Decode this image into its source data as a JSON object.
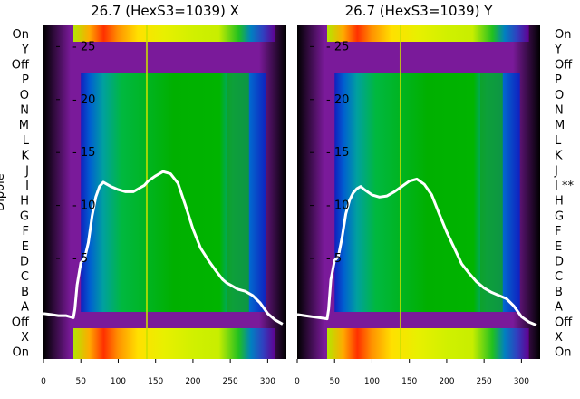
{
  "chart_data": [
    {
      "type": "heatmap",
      "title": "26.7 (HexS3=1039) X",
      "ylabel": "Dipole",
      "row_labels": [
        "On",
        "Y",
        "Off",
        "P",
        "O",
        "N",
        "M",
        "L",
        "K",
        "J",
        "I",
        "H",
        "G",
        "F",
        "E",
        "D",
        "C",
        "B",
        "A",
        "Off",
        "X",
        "On"
      ],
      "x_ticks": [
        0,
        50,
        100,
        150,
        200,
        250,
        300
      ],
      "y_ticks": [
        5,
        10,
        15,
        20,
        25
      ],
      "xlim": [
        0,
        325
      ],
      "ylim": [
        -4.5,
        27
      ],
      "grid": false,
      "overlay_series": [
        {
          "x": [
            0,
            10,
            20,
            30,
            40,
            42,
            45,
            50,
            55,
            60,
            65,
            70,
            75,
            80,
            90,
            100,
            110,
            120,
            130,
            135,
            140,
            150,
            160,
            170,
            180,
            190,
            200,
            210,
            220,
            230,
            240,
            245,
            250,
            255,
            260,
            265,
            270,
            280,
            290,
            300,
            310,
            320
          ],
          "y": [
            -0.2,
            -0.3,
            -0.4,
            -0.4,
            -0.6,
            0.2,
            2.5,
            4.6,
            5.0,
            6.5,
            9.0,
            10.8,
            11.8,
            12.2,
            11.8,
            11.5,
            11.3,
            11.3,
            11.7,
            11.9,
            12.3,
            12.8,
            13.2,
            13.0,
            12.1,
            10.0,
            7.8,
            6.0,
            4.9,
            3.9,
            3.0,
            2.7,
            2.5,
            2.3,
            2.1,
            2.0,
            1.9,
            1.5,
            0.8,
            -0.2,
            -0.8,
            -1.2
          ]
        }
      ]
    },
    {
      "type": "heatmap",
      "title": "26.7 (HexS3=1039) Y",
      "row_labels": [
        "On",
        "Y",
        "Off",
        "P",
        "O",
        "N",
        "M",
        "L",
        "K",
        "J",
        "I **",
        "H",
        "G",
        "F",
        "E",
        "D",
        "C",
        "B",
        "A",
        "Off",
        "X",
        "On"
      ],
      "x_ticks": [
        0,
        50,
        100,
        150,
        200,
        250,
        300
      ],
      "y_ticks": [
        5,
        10,
        15,
        20,
        25
      ],
      "xlim": [
        0,
        325
      ],
      "ylim": [
        -4.5,
        27
      ],
      "grid": false,
      "overlay_series": [
        {
          "x": [
            0,
            10,
            20,
            30,
            40,
            42,
            45,
            50,
            55,
            60,
            65,
            70,
            75,
            80,
            85,
            90,
            100,
            110,
            120,
            130,
            140,
            150,
            160,
            170,
            180,
            190,
            200,
            210,
            220,
            230,
            240,
            250,
            260,
            270,
            280,
            290,
            300,
            310,
            320
          ],
          "y": [
            -0.3,
            -0.4,
            -0.5,
            -0.6,
            -0.7,
            0.2,
            3.0,
            4.8,
            5.2,
            7.0,
            9.2,
            10.5,
            11.2,
            11.6,
            11.8,
            11.5,
            11.0,
            10.8,
            10.9,
            11.3,
            11.8,
            12.3,
            12.5,
            12.0,
            11.0,
            9.2,
            7.5,
            6.0,
            4.5,
            3.6,
            2.8,
            2.2,
            1.8,
            1.5,
            1.2,
            0.5,
            -0.5,
            -1.0,
            -1.3
          ]
        }
      ]
    }
  ]
}
